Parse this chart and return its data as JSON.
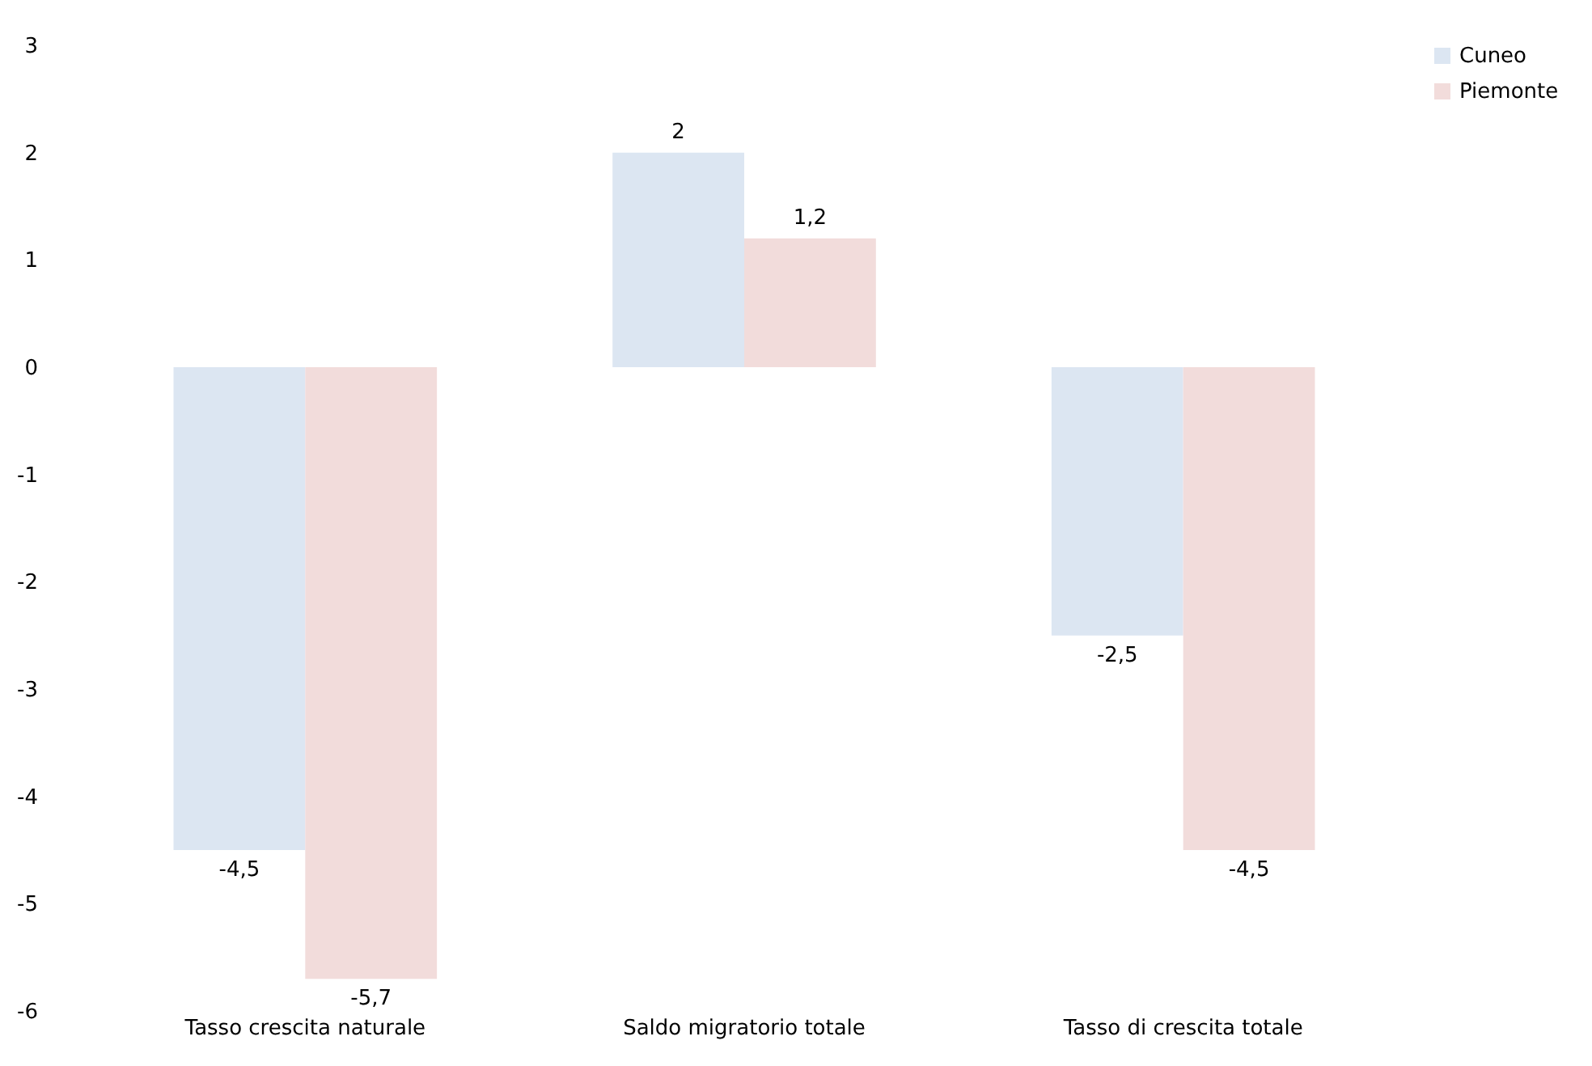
{
  "chart_data": {
    "type": "bar",
    "categories": [
      "Tasso crescita naturale",
      "Saldo migratorio totale",
      "Tasso di crescita totale"
    ],
    "series": [
      {
        "name": "Cuneo",
        "color": "#dce6f2",
        "values": [
          -4.5,
          2,
          -2.5
        ],
        "value_labels": [
          "-4,5",
          "2",
          "-2,5"
        ]
      },
      {
        "name": "Piemonte",
        "color": "#f2dcdb",
        "values": [
          -5.7,
          1.2,
          -4.5
        ],
        "value_labels": [
          "-5,7",
          "1,2",
          "-4,5"
        ]
      }
    ],
    "ylim": [
      -6,
      3
    ],
    "yticks": [
      -6,
      -5,
      -4,
      -3,
      -2,
      -1,
      0,
      1,
      2,
      3
    ],
    "grid": false,
    "legend": "right"
  }
}
